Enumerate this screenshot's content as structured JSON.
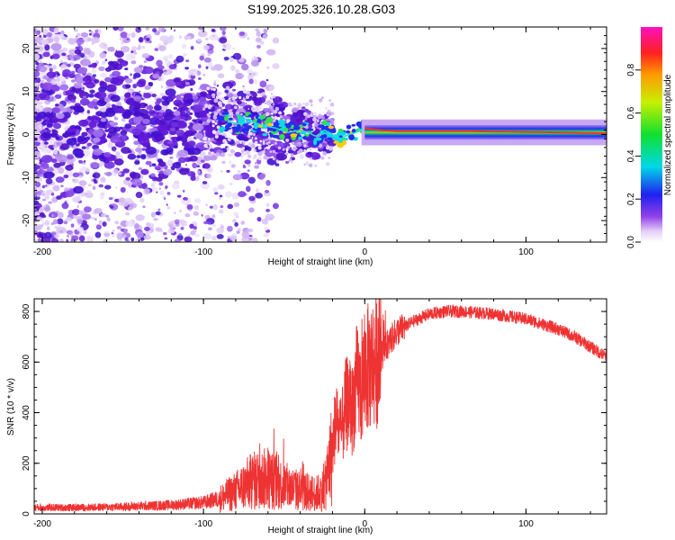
{
  "title": "S199.2025.326.10.28.G03",
  "chart_data": [
    {
      "type": "heatmap",
      "xlabel": "Height of straight line (km)",
      "ylabel": "Frequency (Hz)",
      "xlim": [
        -205,
        150
      ],
      "ylim": [
        -25,
        25
      ],
      "xticks": [
        -200,
        -100,
        0,
        100
      ],
      "xtick_labels": [
        "-200",
        "-100",
        "0",
        "100"
      ],
      "yticks": [
        -20,
        -10,
        0,
        10,
        20
      ],
      "ytick_labels": [
        "-20",
        "-10",
        "0",
        "10",
        "20"
      ],
      "colorbar": {
        "label": "Normalized spectral amplitude",
        "range": [
          0,
          1
        ],
        "ticks": [
          0.0,
          0.2,
          0.4,
          0.6,
          0.8
        ],
        "tick_labels": [
          "0.0",
          "0.2",
          "0.4",
          "0.6",
          "0.8"
        ],
        "colormap": "rainbow (white-violet-blue-cyan-green-yellow-red-magenta)"
      },
      "ridge": {
        "description": "Dominant signal frequency (Hz) vs height (km)",
        "x": [
          -85,
          -78,
          -70,
          -62,
          -55,
          -48,
          -40,
          -35,
          -30,
          -25,
          -20,
          -15,
          -10,
          -5,
          0,
          5,
          10,
          20,
          40,
          60,
          80,
          100,
          120,
          150
        ],
        "y": [
          3,
          2.5,
          3,
          2,
          1.5,
          0.5,
          1,
          0.5,
          -0.5,
          1,
          0,
          -1,
          0,
          0.5,
          1.5,
          1.2,
          1,
          0.8,
          0.8,
          0.8,
          0.7,
          0.6,
          0.5,
          0.3
        ]
      }
    },
    {
      "type": "line",
      "xlabel": "Height of straight line (km)",
      "ylabel": "SNR (10 * v/v)",
      "xlim": [
        -205,
        150
      ],
      "ylim": [
        0,
        850
      ],
      "xticks": [
        -200,
        -100,
        0,
        100
      ],
      "xtick_labels": [
        "-200",
        "-100",
        "0",
        "100"
      ],
      "yticks": [
        0,
        200,
        400,
        600,
        800
      ],
      "ytick_labels": [
        "0",
        "200",
        "400",
        "600",
        "800"
      ],
      "series": [
        {
          "name": "SNR",
          "color": "#ee3333",
          "x": [
            -205,
            -180,
            -150,
            -120,
            -100,
            -90,
            -80,
            -70,
            -60,
            -50,
            -40,
            -30,
            -25,
            -20,
            -18,
            -15,
            -12,
            -10,
            -8,
            -5,
            -2,
            0,
            5,
            10,
            15,
            20,
            30,
            40,
            50,
            60,
            70,
            80,
            90,
            100,
            110,
            120,
            130,
            140,
            150
          ],
          "y": [
            25,
            25,
            28,
            35,
            45,
            60,
            90,
            130,
            140,
            110,
            90,
            80,
            100,
            250,
            380,
            300,
            420,
            450,
            400,
            520,
            480,
            560,
            600,
            620,
            680,
            720,
            760,
            790,
            800,
            800,
            795,
            790,
            780,
            770,
            750,
            730,
            700,
            660,
            620
          ]
        }
      ]
    }
  ],
  "colors": {
    "line": "#ee3333",
    "axis": "#000000"
  }
}
